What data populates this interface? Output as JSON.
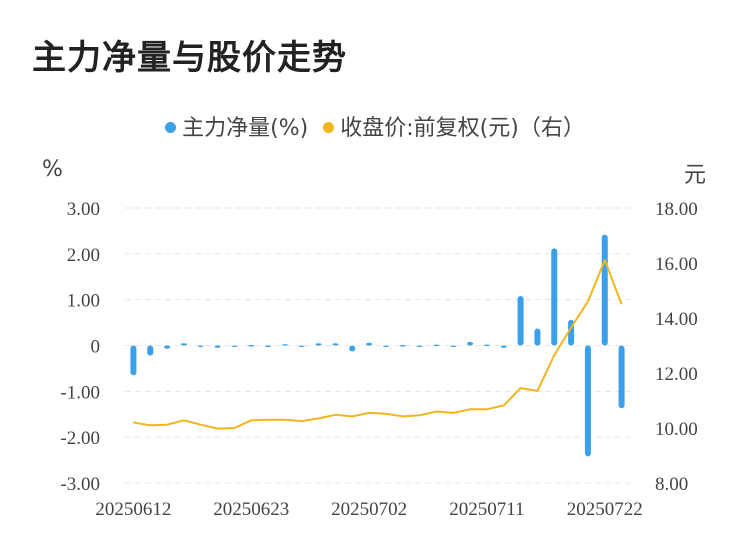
{
  "title": "主力净量与股价走势",
  "legend": {
    "net": "主力净量(%)",
    "price": "收盘价:前复权(元)（右）"
  },
  "units": {
    "left": "%",
    "right": "元"
  },
  "colors": {
    "bar": "#3aa0ea",
    "line": "#f2b51c",
    "grid": "#e6e6e6"
  },
  "chart_data": {
    "type": "bar+line",
    "x": [
      "20250612",
      "20250613",
      "20250616",
      "20250617",
      "20250618",
      "20250619",
      "20250620",
      "20250623",
      "20250624",
      "20250625",
      "20250626",
      "20250627",
      "20250630",
      "20250701",
      "20250702",
      "20250703",
      "20250704",
      "20250707",
      "20250708",
      "20250709",
      "20250710",
      "20250711",
      "20250714",
      "20250715",
      "20250716",
      "20250717",
      "20250718",
      "20250721",
      "20250722",
      "20250723"
    ],
    "x_tick_labels": [
      "20250612",
      "20250623",
      "20250702",
      "20250711",
      "20250722"
    ],
    "series": [
      {
        "name": "主力净量(%)",
        "axis": "left",
        "kind": "bar",
        "values": [
          -0.65,
          -0.22,
          -0.07,
          0.05,
          0.0,
          -0.05,
          0.0,
          0.01,
          0.0,
          0.03,
          0.0,
          0.05,
          0.05,
          -0.13,
          0.06,
          -0.03,
          0.01,
          0.0,
          0.02,
          -0.02,
          0.08,
          0.02,
          -0.05,
          1.08,
          0.37,
          2.12,
          0.56,
          -2.42,
          2.42,
          -1.37
        ]
      },
      {
        "name": "收盘价:前复权(元)（右）",
        "axis": "right",
        "kind": "line",
        "values": [
          10.2,
          10.1,
          10.12,
          10.28,
          10.12,
          9.98,
          10.0,
          10.28,
          10.3,
          10.3,
          10.25,
          10.35,
          10.48,
          10.42,
          10.55,
          10.52,
          10.42,
          10.46,
          10.6,
          10.55,
          10.68,
          10.68,
          10.82,
          11.45,
          11.35,
          12.65,
          13.65,
          14.6,
          16.1,
          14.5
        ]
      }
    ],
    "y_left": {
      "ticks": [
        "3.00",
        "2.00",
        "1.00",
        "0",
        "-1.00",
        "-2.00",
        "-3.00"
      ],
      "range": [
        -3,
        3
      ]
    },
    "y_right": {
      "ticks": [
        "18.00",
        "16.00",
        "14.00",
        "12.00",
        "10.00",
        "8.00"
      ],
      "range": [
        8,
        18
      ]
    },
    "grid": true,
    "legend_position": "top-center"
  }
}
